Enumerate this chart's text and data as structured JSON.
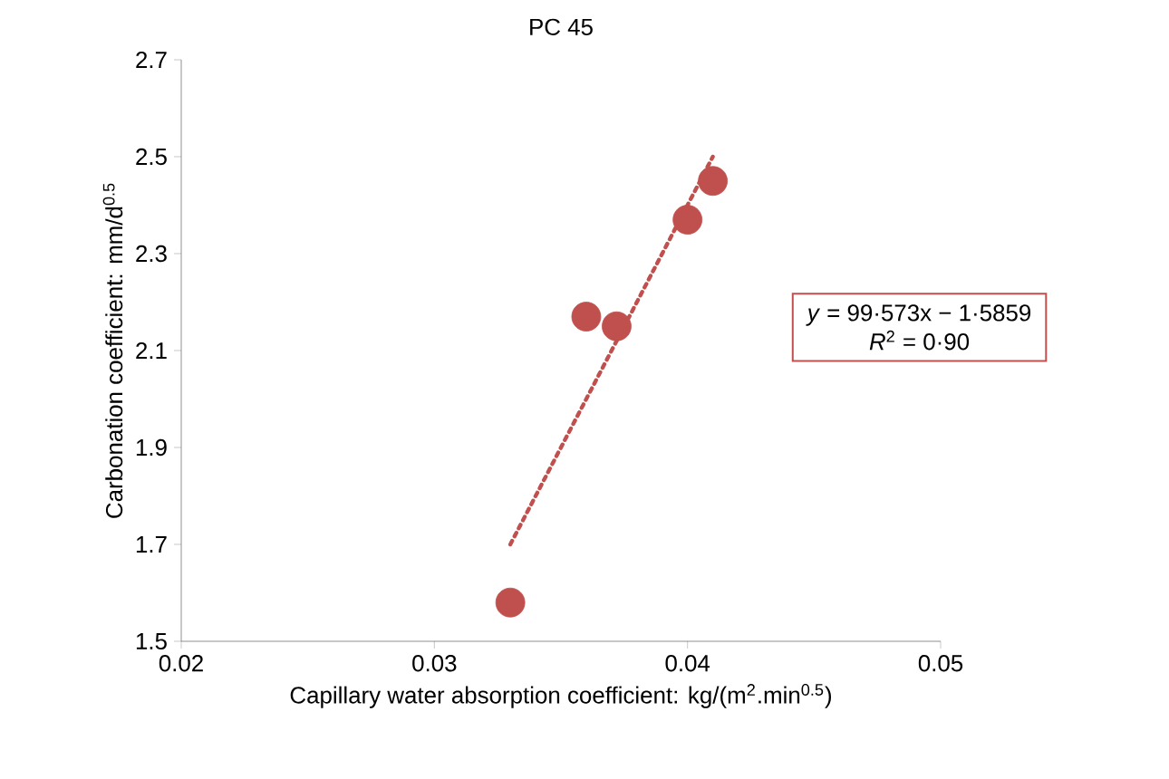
{
  "chart_data": {
    "type": "scatter",
    "title": "PC 45",
    "xlabel": "Capillary water absorption coefficient: kg/(m$^{2}$.min$^{0.5}$)",
    "ylabel": "Carbonation coefficient: mm/d$^{0.5}$",
    "xlim": [
      0.02,
      0.05
    ],
    "ylim": [
      1.5,
      2.7
    ],
    "xticks": [
      0.02,
      0.03,
      0.04,
      0.05
    ],
    "yticks": [
      1.5,
      1.7,
      1.9,
      2.1,
      2.3,
      2.5,
      2.7
    ],
    "grid": false,
    "series": [
      {
        "color": "#c0504d",
        "marker": "circle",
        "x": [
          0.033,
          0.036,
          0.0372,
          0.04,
          0.041
        ],
        "values": [
          1.58,
          2.17,
          2.15,
          2.37,
          2.45
        ]
      },
      {
        "type": "line",
        "color": "#c0504d",
        "marker": "none",
        "line_style": "dotted",
        "x": [
          0.033,
          0.041
        ],
        "values": [
          1.7,
          2.5
        ]
      }
    ],
    "annotations": [
      "*y* = 99·573x − 1·5859",
      "*R*$^{2}$ = 0·90"
    ]
  }
}
